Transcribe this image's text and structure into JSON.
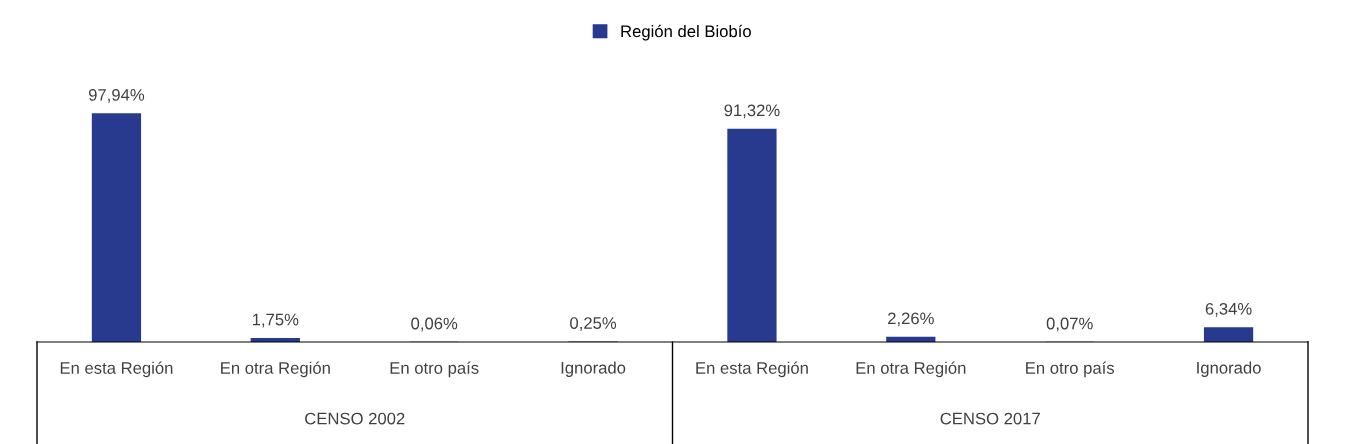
{
  "chart_data": {
    "type": "bar",
    "categories": [
      "En esta Región",
      "En otra Región",
      "En otro país",
      "Ignorado",
      "En esta Región",
      "En otra Región",
      "En otro país",
      "Ignorado"
    ],
    "series": [
      {
        "name": "Región del Biobío",
        "color": "#283a8e",
        "values": [
          97.94,
          1.75,
          0.06,
          0.25,
          91.32,
          2.26,
          0.07,
          6.34
        ],
        "value_labels": [
          "97,94%",
          "1,75%",
          "0,06%",
          "0,25%",
          "91,32%",
          "2,26%",
          "0,07%",
          "6,34%"
        ]
      }
    ],
    "annotations": [
      "CENSO 2002",
      "CENSO 2017"
    ],
    "legend": "top",
    "grid": false
  }
}
